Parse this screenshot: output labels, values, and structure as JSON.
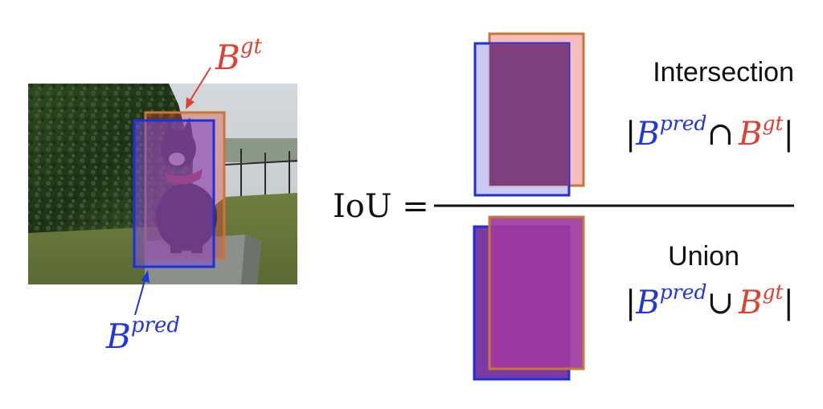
{
  "photo": {
    "label_gt_base": "B",
    "label_gt_sup": "gt",
    "label_pred_base": "B",
    "label_pred_sup": "pred"
  },
  "equation": {
    "lhs": "IoU ="
  },
  "intersection": {
    "title": "Intersection",
    "bar_left": "|",
    "pred_base": "B",
    "pred_sup": "pred",
    "operator": "∩",
    "gt_base": "B",
    "gt_sup": "gt",
    "bar_right": "|"
  },
  "union": {
    "title": "Union",
    "bar_left": "|",
    "pred_base": "B",
    "pred_sup": "pred",
    "operator": "∪",
    "gt_base": "B",
    "gt_sup": "gt",
    "bar_right": "|"
  },
  "colors": {
    "gt": "#e0402f",
    "pred": "#1f36e0",
    "gt_box_stroke": "#c9763a",
    "pred_box_stroke": "#1f2fe0",
    "intersection_fill": "#7d3f7d",
    "union_fill": "#9b3da0"
  }
}
